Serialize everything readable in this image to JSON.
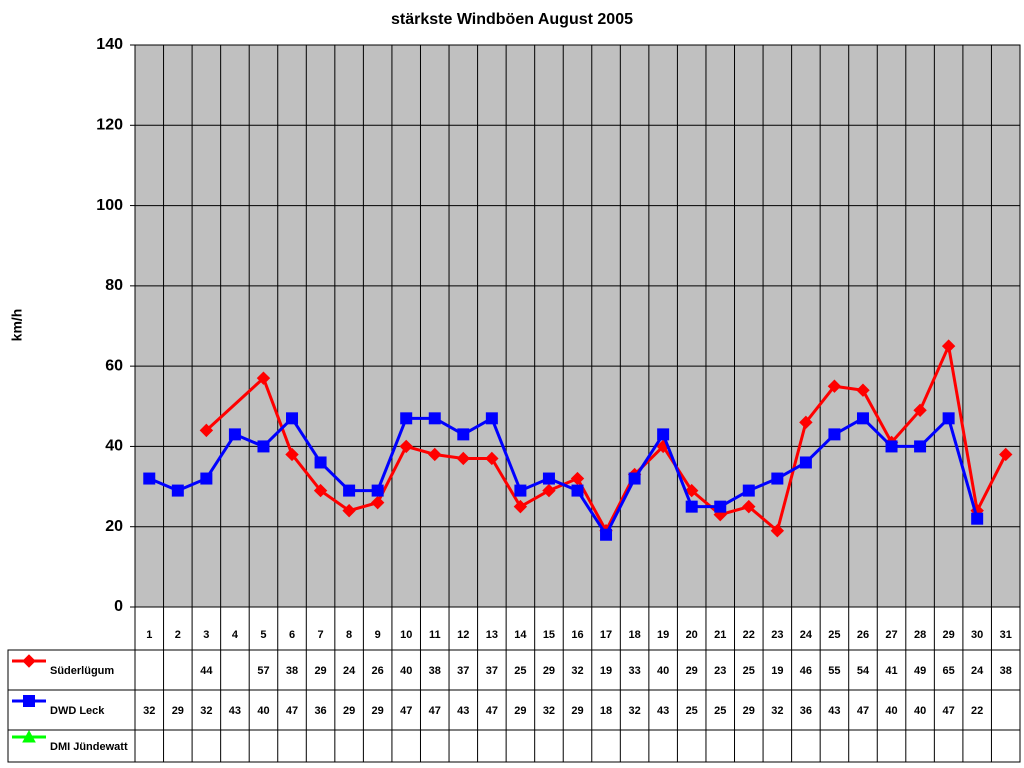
{
  "chart_data": {
    "type": "line",
    "title": "stärkste Windböen August 2005",
    "y_label": "km/h",
    "categories": [
      "1",
      "2",
      "3",
      "4",
      "5",
      "6",
      "7",
      "8",
      "9",
      "10",
      "11",
      "12",
      "13",
      "14",
      "15",
      "16",
      "17",
      "18",
      "19",
      "20",
      "21",
      "22",
      "23",
      "24",
      "25",
      "26",
      "27",
      "28",
      "29",
      "30",
      "31"
    ],
    "series": [
      {
        "name": "Süderlügum",
        "color": "#ff0000",
        "marker": "diamond",
        "values": [
          null,
          null,
          44,
          null,
          57,
          38,
          29,
          24,
          26,
          40,
          38,
          37,
          37,
          25,
          29,
          32,
          19,
          33,
          40,
          29,
          23,
          25,
          19,
          46,
          55,
          54,
          41,
          49,
          65,
          24,
          38
        ]
      },
      {
        "name": "DWD Leck",
        "color": "#0000ff",
        "marker": "square",
        "values": [
          32,
          29,
          32,
          43,
          40,
          47,
          36,
          29,
          29,
          47,
          47,
          43,
          47,
          29,
          32,
          29,
          18,
          32,
          43,
          25,
          25,
          29,
          32,
          36,
          43,
          47,
          40,
          40,
          47,
          22,
          null
        ]
      },
      {
        "name": "DMI Jündewatt",
        "color": "#00ff00",
        "marker": "triangle",
        "values": [
          null,
          null,
          null,
          null,
          null,
          null,
          null,
          null,
          null,
          null,
          null,
          null,
          null,
          null,
          null,
          null,
          null,
          null,
          null,
          null,
          null,
          null,
          null,
          null,
          null,
          null,
          null,
          null,
          null,
          null,
          null
        ]
      }
    ],
    "ylim": [
      0,
      140
    ],
    "yticks": [
      0,
      20,
      40,
      60,
      80,
      100,
      120,
      140
    ],
    "grid": true,
    "plot_background": "#c0c0c0"
  }
}
